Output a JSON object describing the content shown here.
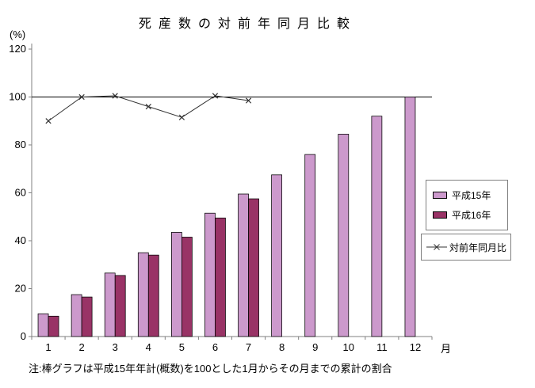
{
  "chart_data": {
    "type": "bar",
    "combo": "bar+line",
    "title": "死産数の対前年同月比較",
    "ylabel": "(%)",
    "xlabel": "月",
    "ylim": [
      0,
      120
    ],
    "ytick_step": 20,
    "grid": false,
    "legend_position": "right",
    "reference_line": 100,
    "categories": [
      "1",
      "2",
      "3",
      "4",
      "5",
      "6",
      "7",
      "8",
      "9",
      "10",
      "11",
      "12"
    ],
    "series": [
      {
        "name": "平成15年",
        "type": "bar",
        "color": "#CC99CC",
        "values": [
          9.5,
          17.5,
          26.5,
          35,
          43.5,
          51.5,
          59.5,
          67.5,
          76,
          84.5,
          92,
          100
        ]
      },
      {
        "name": "平成16年",
        "type": "bar",
        "color": "#993366",
        "values": [
          8.5,
          16.5,
          25.5,
          34,
          41.5,
          49.5,
          57.5
        ]
      },
      {
        "name": "対前年同月比",
        "type": "line",
        "marker": "x",
        "color": "#333333",
        "values": [
          90,
          100,
          100.5,
          96,
          91.5,
          100.5,
          98.5
        ]
      }
    ],
    "note": "注:棒グラフは平成15年年計(概数)を100とした1月からその月までの累計の割合"
  }
}
